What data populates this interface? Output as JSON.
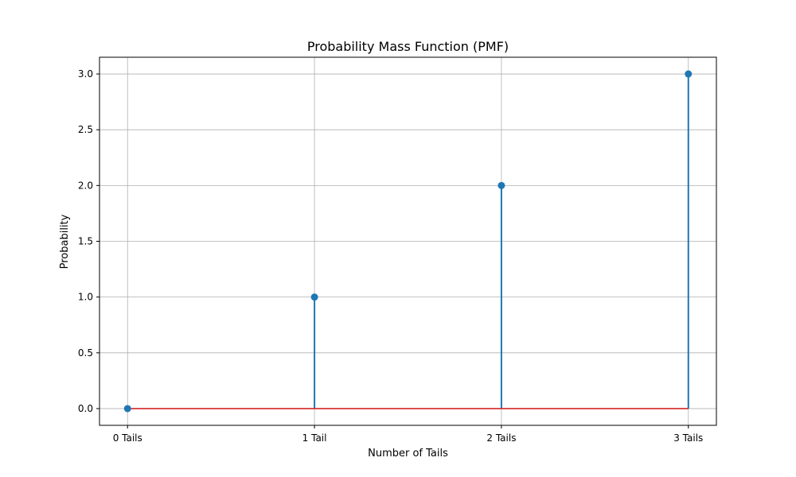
{
  "chart_data": {
    "type": "stem",
    "title": "Probability Mass Function (PMF)",
    "xlabel": "Number of Tails",
    "ylabel": "Probability",
    "categories": [
      "0 Tails",
      "1 Tail",
      "2 Tails",
      "3 Tails"
    ],
    "x": [
      0,
      1,
      2,
      3
    ],
    "values": [
      0,
      1,
      2,
      3
    ],
    "xlim": [
      -0.15,
      3.15
    ],
    "ylim": [
      -0.15,
      3.15
    ],
    "yticks": [
      0.0,
      0.5,
      1.0,
      1.5,
      2.0,
      2.5,
      3.0
    ],
    "ytick_labels": [
      "0.0",
      "0.5",
      "1.0",
      "1.5",
      "2.0",
      "2.5",
      "3.0"
    ],
    "grid": true,
    "colors": {
      "stem": "#1f77b4",
      "marker": "#1f77b4",
      "baseline": "#d62728"
    }
  }
}
